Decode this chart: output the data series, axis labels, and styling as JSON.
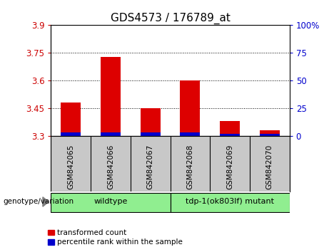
{
  "title": "GDS4573 / 176789_at",
  "samples": [
    "GSM842065",
    "GSM842066",
    "GSM842067",
    "GSM842068",
    "GSM842069",
    "GSM842070"
  ],
  "transformed_counts": [
    3.48,
    3.73,
    3.45,
    3.6,
    3.38,
    3.33
  ],
  "percentile_ranks": [
    3,
    3,
    3,
    3,
    2,
    2
  ],
  "y_min": 3.3,
  "y_max": 3.9,
  "y_ticks": [
    3.3,
    3.45,
    3.6,
    3.75,
    3.9
  ],
  "y_tick_labels": [
    "3.3",
    "3.45",
    "3.6",
    "3.75",
    "3.9"
  ],
  "right_y_ticks": [
    0,
    25,
    50,
    75,
    100
  ],
  "right_y_tick_labels": [
    "0",
    "25",
    "50",
    "75",
    "100%"
  ],
  "percentile_scale_max": 100,
  "bar_width": 0.5,
  "red_color": "#dd0000",
  "blue_color": "#0000cc",
  "group_defs": [
    {
      "label": "wildtype",
      "start": 0,
      "end": 2,
      "color": "#90ee90"
    },
    {
      "label": "tdp-1(ok803lf) mutant",
      "start": 3,
      "end": 5,
      "color": "#90ee90"
    }
  ],
  "xlabel_left": "genotype/variation",
  "legend_items": [
    {
      "label": "transformed count",
      "color": "#dd0000"
    },
    {
      "label": "percentile rank within the sample",
      "color": "#0000cc"
    }
  ],
  "bg_color_plot": "#ffffff",
  "bg_color_xlabels": "#c8c8c8",
  "tick_label_color_left": "#cc0000",
  "tick_label_color_right": "#0000cc",
  "grid_color": "#000000"
}
